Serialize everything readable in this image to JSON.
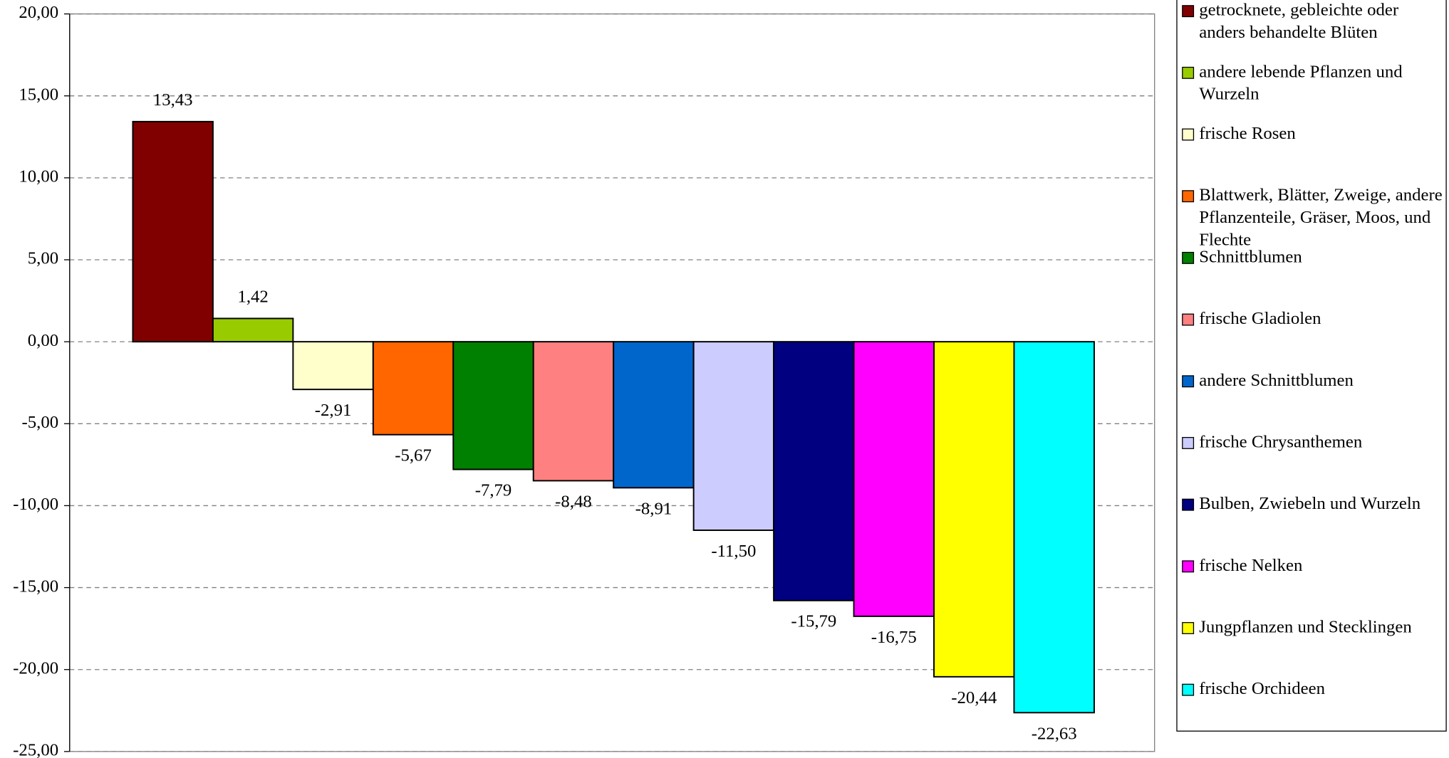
{
  "chart_data": {
    "type": "bar",
    "series": [
      {
        "name": "getrocknete, gebleichte oder anders behandelte Blüten",
        "color": "#800000",
        "values": [
          13.43
        ],
        "value_labels": [
          "13,43"
        ]
      },
      {
        "name": "andere lebende Pflanzen und Wurzeln",
        "color": "#99CC00",
        "values": [
          1.42
        ],
        "value_labels": [
          "1,42"
        ]
      },
      {
        "name": "frische Rosen",
        "color": "#FFFFCC",
        "values": [
          -2.91
        ],
        "value_labels": [
          "-2,91"
        ]
      },
      {
        "name": "Blattwerk, Blätter, Zweige, andere Pflanzenteile, Gräser, Moos, und Flechte",
        "color": "#FF6600",
        "values": [
          -5.67
        ],
        "value_labels": [
          "-5,67"
        ]
      },
      {
        "name": "Schnittblumen",
        "color": "#008000",
        "values": [
          -7.79
        ],
        "value_labels": [
          "-7,79"
        ]
      },
      {
        "name": "frische Gladiolen",
        "color": "#FF8080",
        "values": [
          -8.48
        ],
        "value_labels": [
          "-8,48"
        ]
      },
      {
        "name": "andere Schnittblumen",
        "color": "#0066CC",
        "values": [
          -8.91
        ],
        "value_labels": [
          "-8,91"
        ]
      },
      {
        "name": "frische Chrysanthemen",
        "color": "#CCCCFF",
        "values": [
          -11.5
        ],
        "value_labels": [
          "-11,50"
        ]
      },
      {
        "name": "Bulben, Zwiebeln und Wurzeln",
        "color": "#000080",
        "values": [
          -15.79
        ],
        "value_labels": [
          "-15,79"
        ]
      },
      {
        "name": "frische Nelken",
        "color": "#FF00FF",
        "values": [
          -16.75
        ],
        "value_labels": [
          "-16,75"
        ]
      },
      {
        "name": "Jungpflanzen und Stecklingen",
        "color": "#FFFF00",
        "values": [
          -20.44
        ],
        "value_labels": [
          "-20,44"
        ]
      },
      {
        "name": "frische Orchideen",
        "color": "#00FFFF",
        "values": [
          -22.63
        ],
        "value_labels": [
          "-22,63"
        ]
      }
    ],
    "ylim": [
      -25,
      20
    ],
    "yticks": [
      {
        "value": -25,
        "label": "-25,00"
      },
      {
        "value": -20,
        "label": "-20,00"
      },
      {
        "value": -15,
        "label": "-15,00"
      },
      {
        "value": -10,
        "label": "-10,00"
      },
      {
        "value": -5,
        "label": "-5,00"
      },
      {
        "value": 0,
        "label": "0,00"
      },
      {
        "value": 5,
        "label": "5,00"
      },
      {
        "value": 10,
        "label": "10,00"
      },
      {
        "value": 15,
        "label": "15,00"
      },
      {
        "value": 20,
        "label": "20,00"
      }
    ],
    "grid": true,
    "legend": "right"
  }
}
